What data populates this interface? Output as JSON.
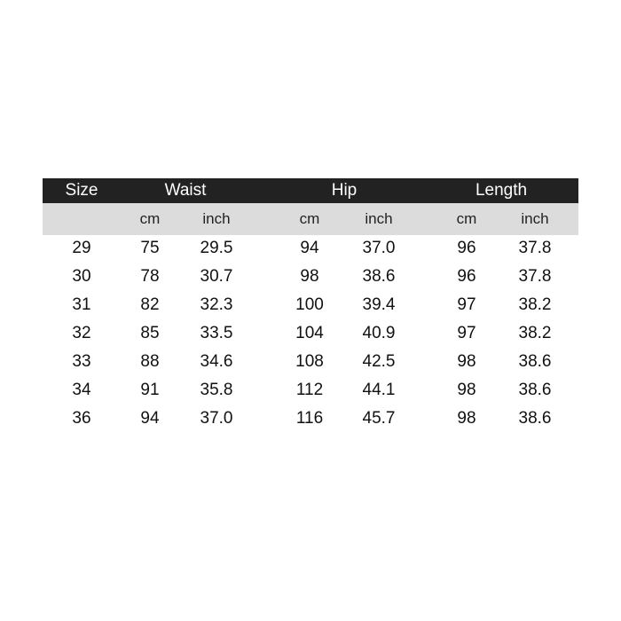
{
  "header": {
    "size": "Size",
    "waist": "Waist",
    "hip": "Hip",
    "length": "Length"
  },
  "subheader": [
    "",
    "cm",
    "inch",
    "cm",
    "inch",
    "cm",
    "inch"
  ],
  "rows": [
    [
      "29",
      "75",
      "29.5",
      "94",
      "37.0",
      "96",
      "37.8"
    ],
    [
      "30",
      "78",
      "30.7",
      "98",
      "38.6",
      "96",
      "37.8"
    ],
    [
      "31",
      "82",
      "32.3",
      "100",
      "39.4",
      "97",
      "38.2"
    ],
    [
      "32",
      "85",
      "33.5",
      "104",
      "40.9",
      "97",
      "38.2"
    ],
    [
      "33",
      "88",
      "34.6",
      "108",
      "42.5",
      "98",
      "38.6"
    ],
    [
      "34",
      "91",
      "35.8",
      "112",
      "44.1",
      "98",
      "38.6"
    ],
    [
      "36",
      "94",
      "37.0",
      "116",
      "45.7",
      "98",
      "38.6"
    ]
  ],
  "colors": {
    "header_bg": "#222222",
    "subheader_bg": "#dcdcdc"
  }
}
